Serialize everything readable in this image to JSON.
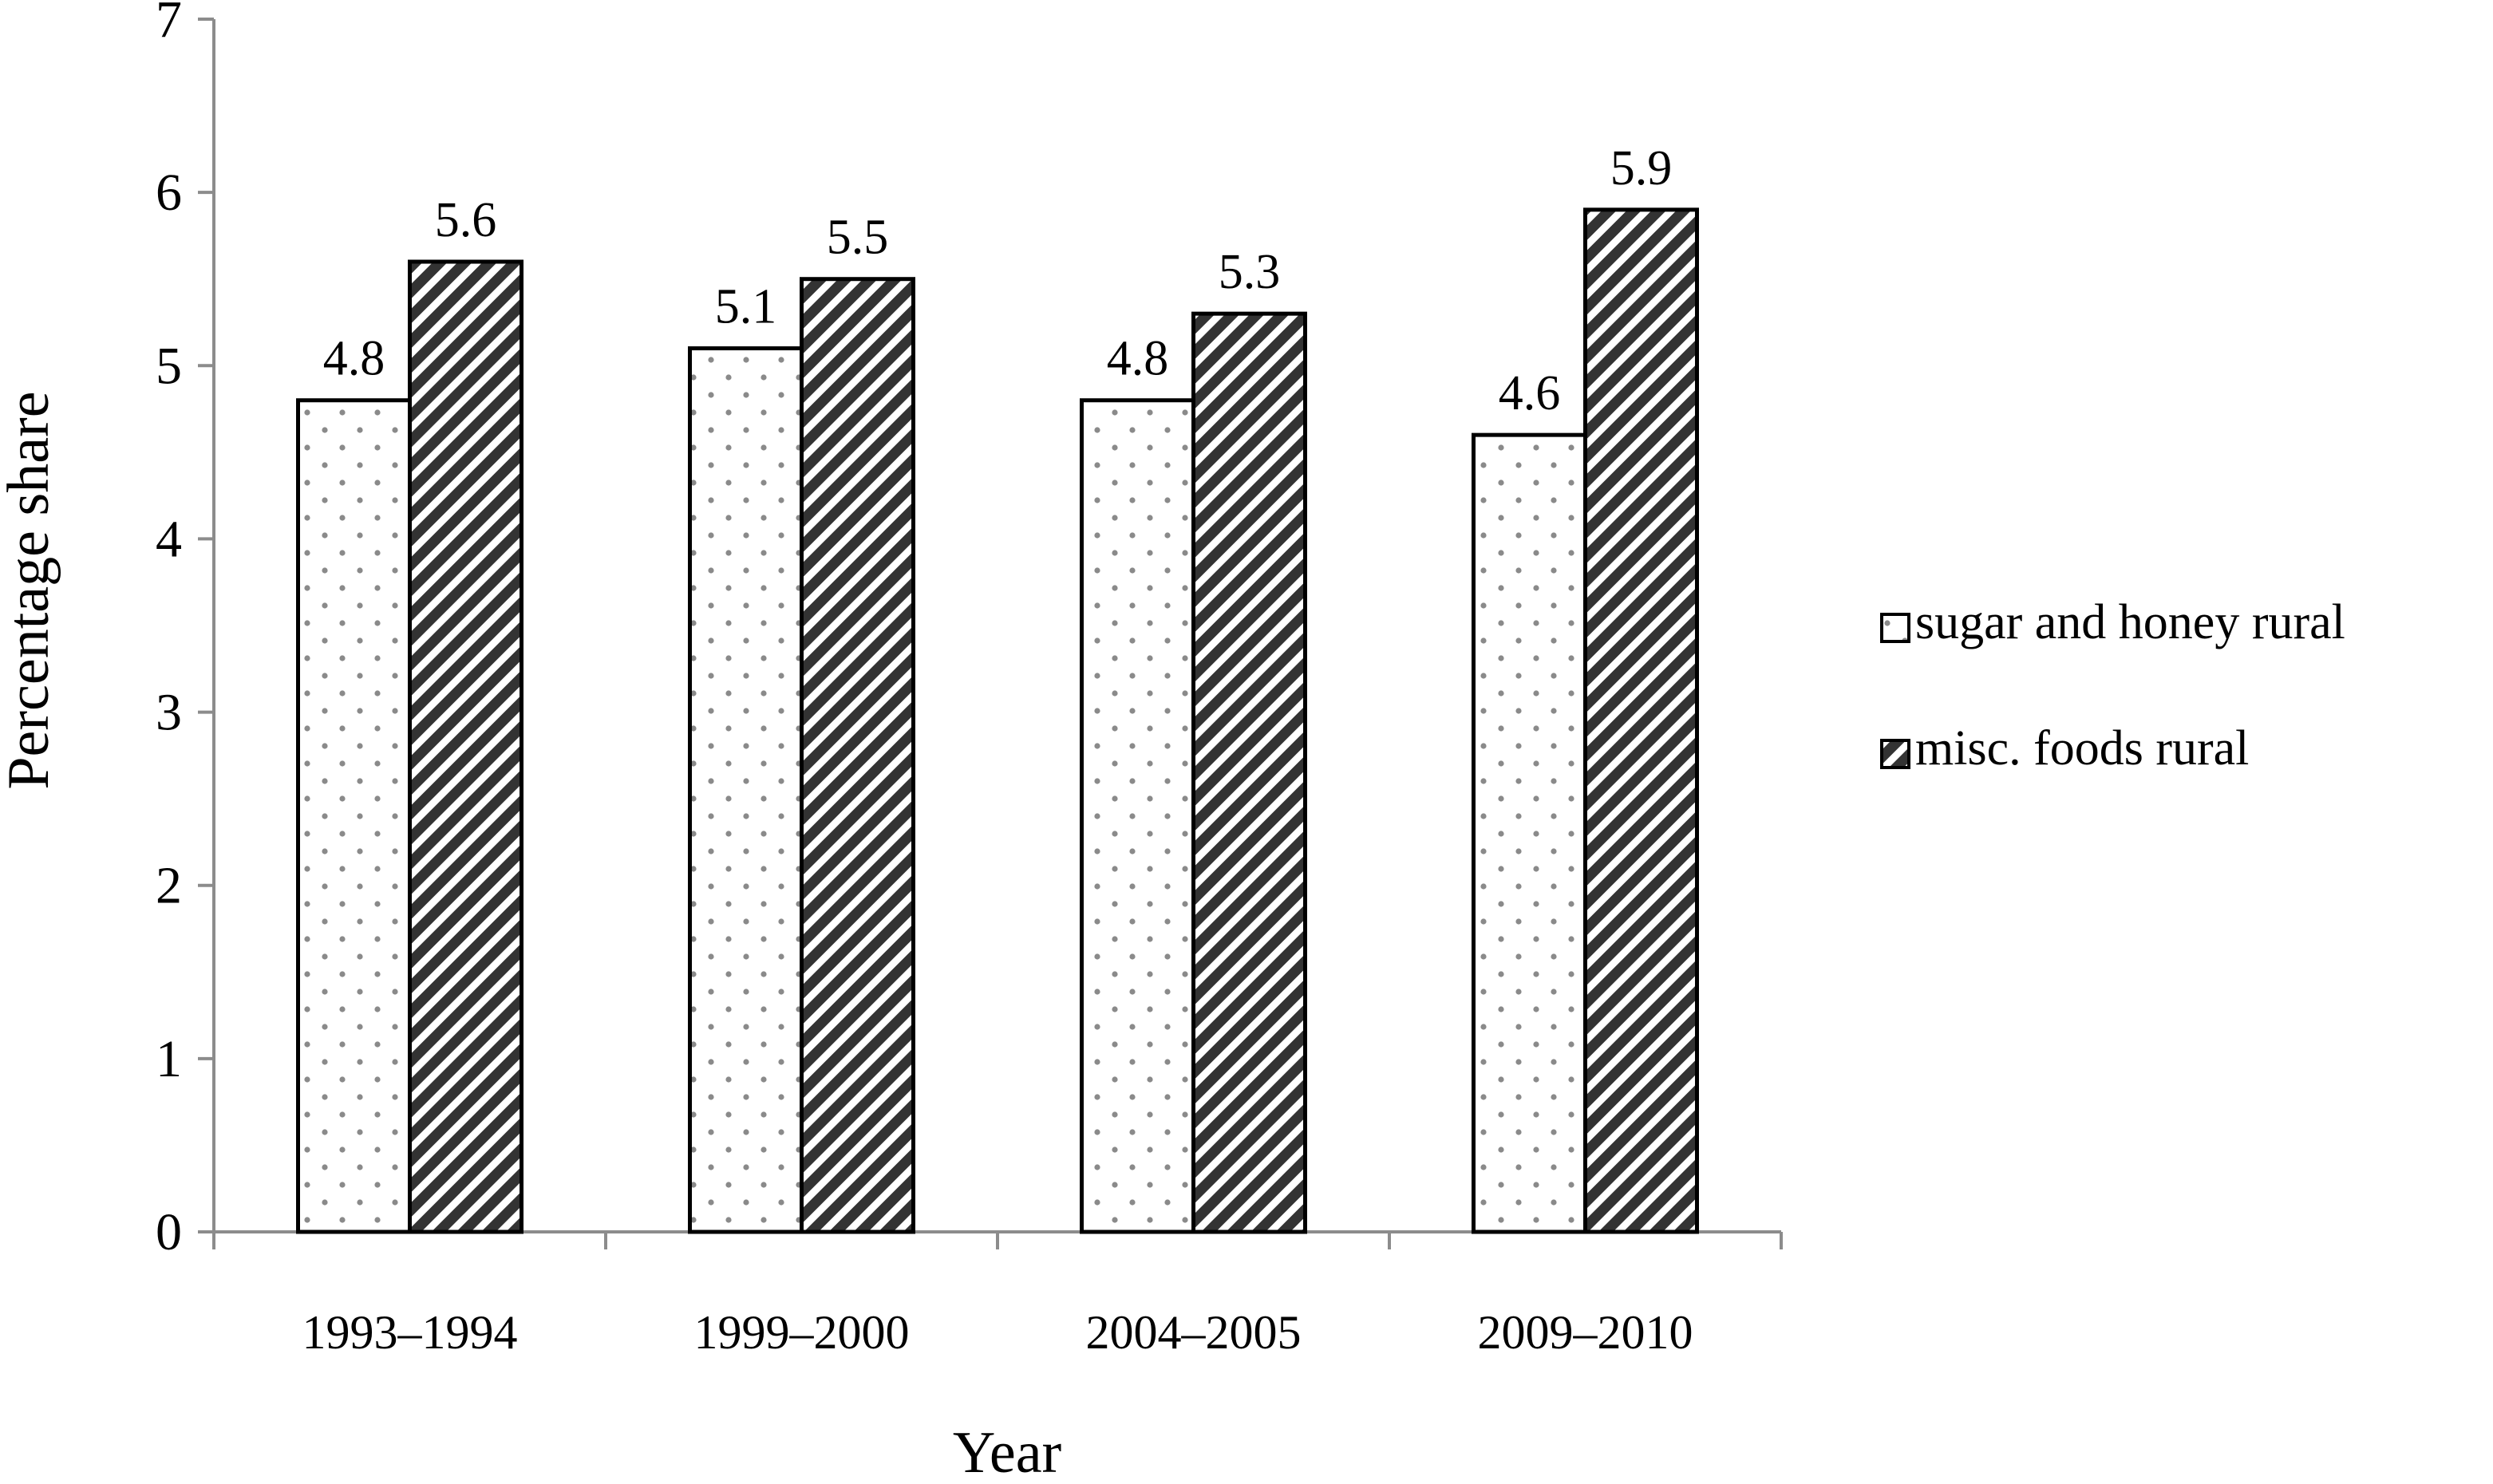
{
  "chart_data": {
    "type": "bar",
    "title": "",
    "xlabel": "Year",
    "ylabel": "Percentage share",
    "categories": [
      "1993–1994",
      "1999–2000",
      "2004–2005",
      "2009–2010"
    ],
    "ylim": [
      0,
      7
    ],
    "yticks": [
      0,
      1,
      2,
      3,
      4,
      5,
      6,
      7
    ],
    "grid": false,
    "legend_position": "right",
    "series": [
      {
        "name": "sugar and honey rural",
        "values": [
          4.8,
          5.1,
          4.8,
          4.6
        ],
        "labels": [
          "4.8",
          "5.1",
          "4.8",
          "4.6"
        ],
        "pattern": "dots",
        "color": "#ffffff"
      },
      {
        "name": "misc. foods rural",
        "values": [
          5.6,
          5.5,
          5.3,
          5.9
        ],
        "labels": [
          "5.6",
          "5.5",
          "5.3",
          "5.9"
        ],
        "pattern": "diagonal-stripes",
        "color": "#333333"
      }
    ],
    "colors": {
      "axis": "#8c8c8c",
      "bar_outline": "#000000",
      "stripe_dark": "#333333",
      "dot": "#8a8a8a"
    }
  }
}
